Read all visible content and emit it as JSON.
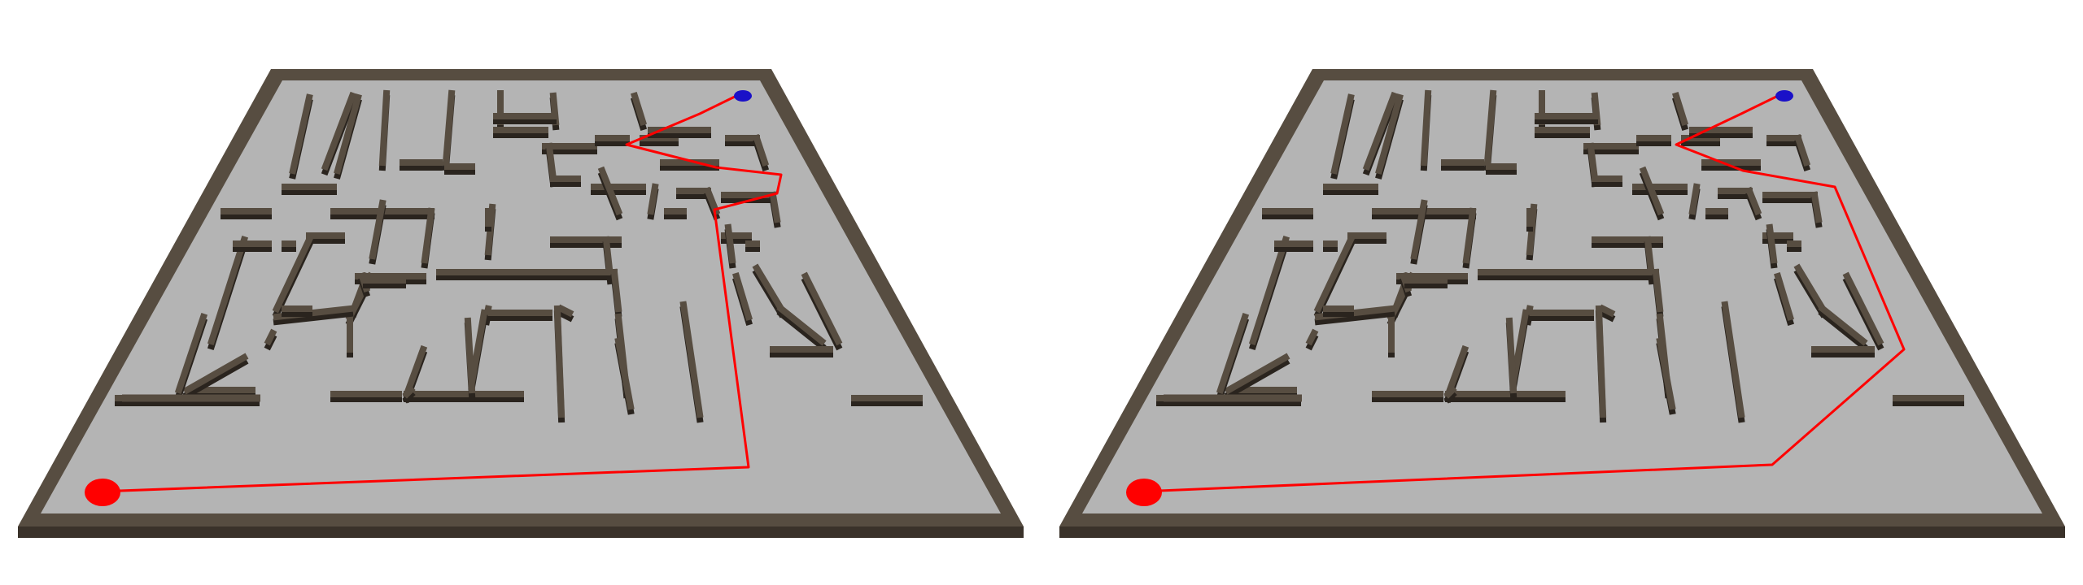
{
  "scene": {
    "type": "3d-maze-path-comparison",
    "panel_count": 2
  },
  "colors": {
    "background": "#ffffff",
    "floor": "#b4b4b4",
    "wall_top": "#574d41",
    "wall_side": "#3a322a",
    "wall_shadow": "#2a241e",
    "path": "#ff0000",
    "start_marker": "#ff0000",
    "goal_marker": "#1a10c8"
  },
  "markers": {
    "start": {
      "name": "start-ball",
      "color": "red"
    },
    "goal": {
      "name": "goal-ball",
      "color": "blue"
    }
  },
  "panels": [
    {
      "name": "maze-panel-left",
      "path_label": "path-variant-a"
    },
    {
      "name": "maze-panel-right",
      "path_label": "path-variant-b"
    }
  ]
}
